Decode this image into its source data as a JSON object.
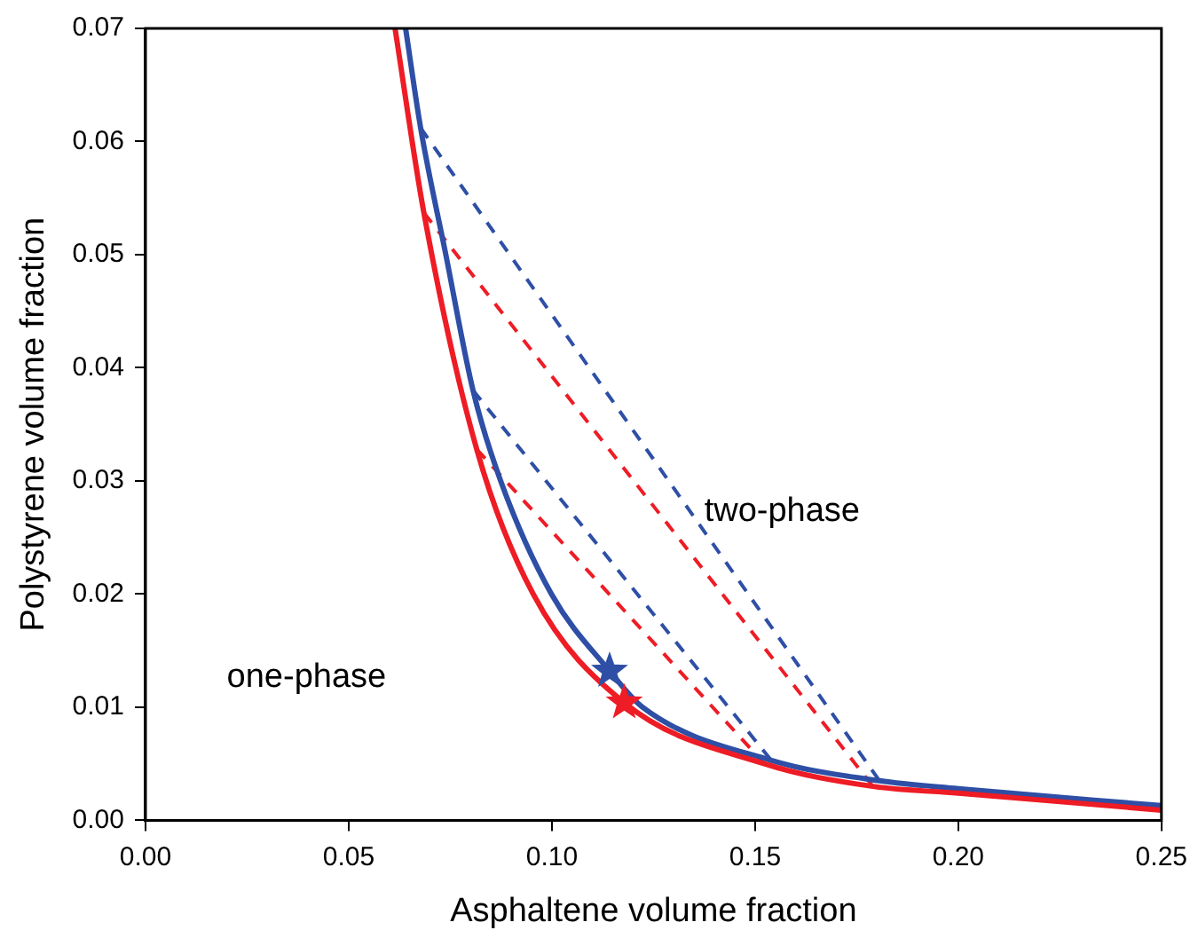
{
  "chart_data": {
    "type": "line",
    "xlabel": "Asphaltene volume fraction",
    "ylabel": "Polystyrene volume fraction",
    "xlim": [
      0,
      0.25
    ],
    "xticks": [
      {
        "value": 0,
        "label": "0.00"
      },
      {
        "value": 0.05,
        "label": "0.05"
      },
      {
        "value": 0.1,
        "label": "0.10"
      },
      {
        "value": 0.15,
        "label": "0.15"
      },
      {
        "value": 0.2,
        "label": "0.20"
      },
      {
        "value": 0.25,
        "label": "0.25"
      }
    ],
    "ylim": [
      0,
      0.07
    ],
    "yticks": [
      {
        "value": 0,
        "label": "0.00"
      },
      {
        "value": 0.01,
        "label": "0.01"
      },
      {
        "value": 0.02,
        "label": "0.02"
      },
      {
        "value": 0.03,
        "label": "0.03"
      },
      {
        "value": 0.04,
        "label": "0.04"
      },
      {
        "value": 0.05,
        "label": "0.05"
      },
      {
        "value": 0.06,
        "label": "0.06"
      },
      {
        "value": 0.07,
        "label": "0.07"
      }
    ],
    "grid": false,
    "legend": false,
    "series": [
      {
        "color": "#ee1c25",
        "line_style": "solid",
        "marker": "none",
        "x": [
          0.0614,
          0.0685,
          0.0815,
          0.0954,
          0.1178,
          0.1523,
          0.179,
          0.2,
          0.25
        ],
        "values": [
          0.07,
          0.0537,
          0.0328,
          0.02,
          0.0104,
          0.005,
          0.003,
          0.0024,
          0.0009
        ]
      },
      {
        "color": "#2e4fa5",
        "line_style": "solid",
        "marker": "none",
        "x": [
          0.064,
          0.0677,
          0.0739,
          0.0806,
          0.0874,
          0.0999,
          0.1142,
          0.1223,
          0.154,
          0.1806,
          0.2,
          0.25
        ],
        "values": [
          0.07,
          0.0612,
          0.05,
          0.038,
          0.03,
          0.02,
          0.0132,
          0.01,
          0.0053,
          0.0035,
          0.0028,
          0.0013
        ]
      },
      {
        "color": "#2e4fa5",
        "line_style": "dashed",
        "marker": "none",
        "x": [
          0.0677,
          0.1806
        ],
        "values": [
          0.0612,
          0.0035
        ]
      },
      {
        "color": "#ee1c25",
        "line_style": "dashed",
        "marker": "none",
        "x": [
          0.0685,
          0.179
        ],
        "values": [
          0.0537,
          0.003
        ]
      },
      {
        "color": "#2e4fa5",
        "line_style": "dashed",
        "marker": "none",
        "x": [
          0.0806,
          0.154
        ],
        "values": [
          0.038,
          0.0053
        ]
      },
      {
        "color": "#ee1c25",
        "line_style": "dashed",
        "marker": "none",
        "x": [
          0.0815,
          0.1523
        ],
        "values": [
          0.0328,
          0.005
        ]
      },
      {
        "type": "scatter",
        "color": "#2e4fa5",
        "marker": "star",
        "x": [
          0.1142
        ],
        "values": [
          0.0132
        ]
      },
      {
        "type": "scatter",
        "color": "#ee1c25",
        "marker": "star",
        "x": [
          0.1178
        ],
        "values": [
          0.0104
        ]
      }
    ],
    "annotations": [
      "two-phase",
      "one-phase"
    ]
  }
}
